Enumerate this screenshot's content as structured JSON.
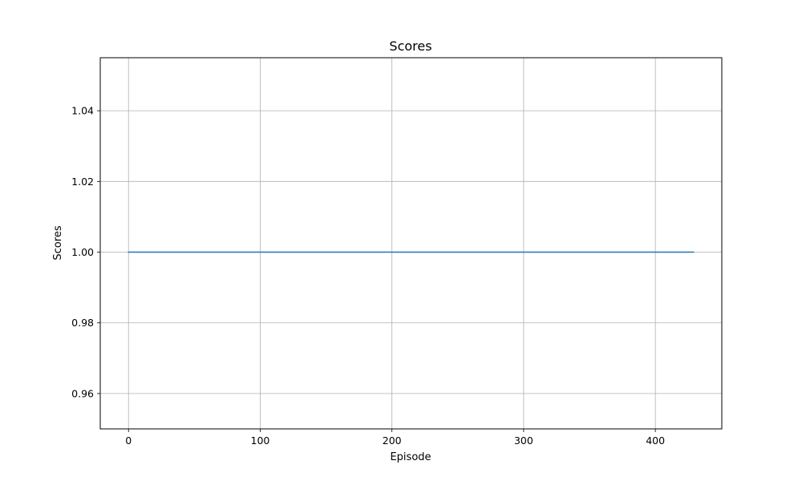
{
  "chart_data": {
    "type": "line",
    "title": "Scores",
    "xlabel": "Episode",
    "ylabel": "Scores",
    "xlim": [
      -21.45,
      450.45
    ],
    "ylim": [
      0.95,
      1.055
    ],
    "xticks": [
      0,
      100,
      200,
      300,
      400
    ],
    "yticks": [
      0.96,
      0.98,
      1.0,
      1.02,
      1.04
    ],
    "xtick_labels": [
      "0",
      "100",
      "200",
      "300",
      "400"
    ],
    "ytick_labels": [
      "0.96",
      "0.98",
      "1.00",
      "1.02",
      "1.04"
    ],
    "grid": true,
    "series": [
      {
        "x": [
          0,
          429
        ],
        "y": [
          1.0,
          1.0
        ],
        "color": "#1f77b4"
      }
    ]
  }
}
